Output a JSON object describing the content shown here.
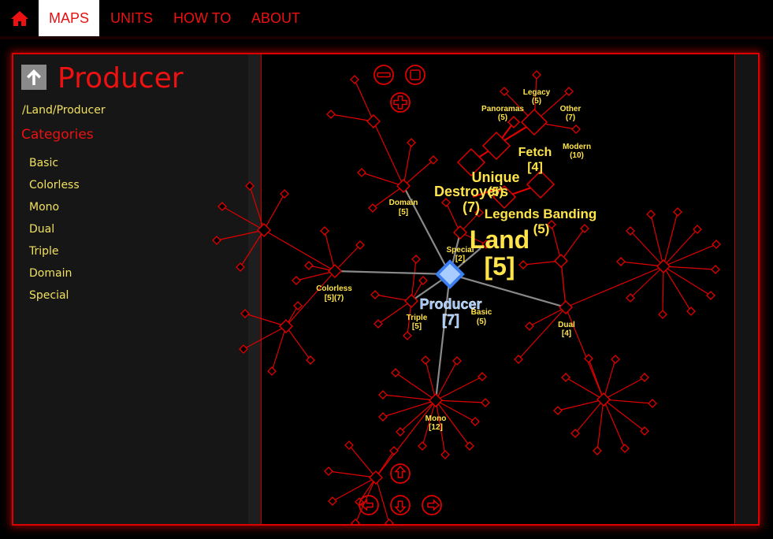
{
  "nav": {
    "home_icon": "home-icon",
    "tabs": [
      {
        "label": "MAPS",
        "active": true
      },
      {
        "label": "UNITS",
        "active": false
      },
      {
        "label": "HOW TO",
        "active": false
      },
      {
        "label": "ABOUT",
        "active": false
      }
    ]
  },
  "sidebar": {
    "up_icon": "arrow-up-icon",
    "title": "Producer",
    "breadcrumb": "/Land/Producer",
    "categories_heading": "Categories",
    "categories": [
      "Basic",
      "Colorless",
      "Mono",
      "Dual",
      "Triple",
      "Domain",
      "Special"
    ]
  },
  "map": {
    "controls": [
      "zoom-out-icon",
      "zoom-reset-icon",
      "zoom-in-icon",
      "pan-up-icon",
      "pan-left-icon",
      "pan-down-icon",
      "pan-right-icon"
    ],
    "center_node": {
      "name": "Producer",
      "count": "[7]"
    },
    "parent_node": {
      "name": "Land",
      "count": "[5]"
    },
    "child_nodes": [
      {
        "name": "Domain",
        "count": "[5]"
      },
      {
        "name": "Special",
        "count": "[2]"
      },
      {
        "name": "Colorless",
        "count": "[5](7)"
      },
      {
        "name": "Triple",
        "count": "[5]"
      },
      {
        "name": "Basic",
        "count": "(5)"
      },
      {
        "name": "Dual",
        "count": "[4]"
      },
      {
        "name": "Mono",
        "count": "[12]"
      }
    ],
    "sibling_nodes": [
      {
        "name": "Legacy",
        "count": "(5)"
      },
      {
        "name": "Panoramas",
        "count": "(5)"
      },
      {
        "name": "Other",
        "count": "(7)"
      },
      {
        "name": "Modern",
        "count": "(10)"
      },
      {
        "name": "Fetch",
        "count": "[4]"
      },
      {
        "name": "Unique",
        "count": "(5)"
      },
      {
        "name": "Destroyers",
        "count": "(7)"
      },
      {
        "name": "Legends Banding",
        "count": "(5)"
      }
    ],
    "colors": {
      "edge": "#e00000",
      "center": "#3d7ef0",
      "label": "#ffe44a",
      "center_label": "#9fc8ff",
      "link": "#8a8a8a"
    }
  }
}
